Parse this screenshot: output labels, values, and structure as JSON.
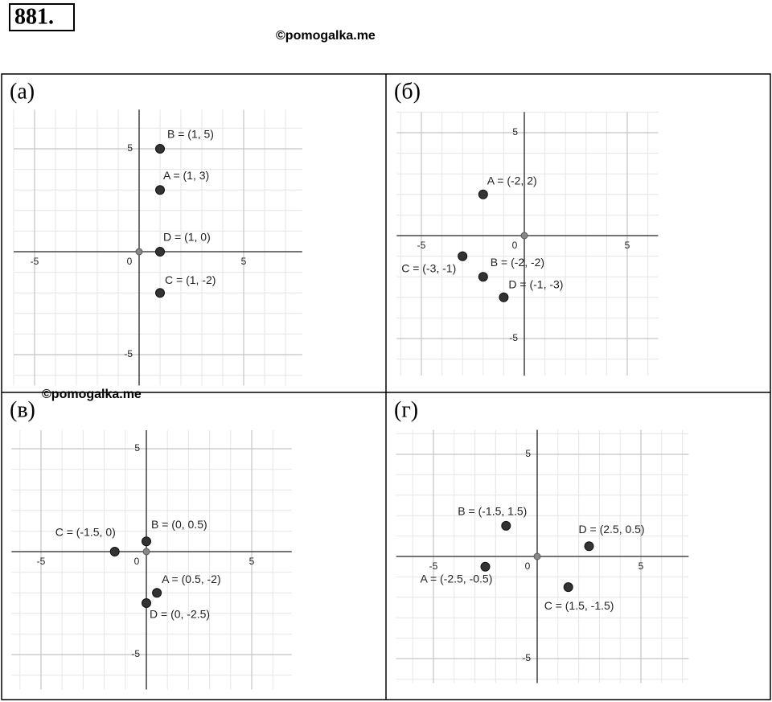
{
  "header": {
    "number": "881.",
    "watermark": "©pomogalka.me"
  },
  "watermark_2": "©pomogalka.me",
  "chart_data": [
    {
      "type": "scatter",
      "title": "(а)",
      "x": [
        1,
        1,
        1,
        1
      ],
      "values": [
        3,
        5,
        -2,
        0
      ],
      "labels": [
        "A = (1, 3)",
        "B = (1, 5)",
        "C = (1, -2)",
        "D = (1, 0)"
      ],
      "xlim": [
        -6,
        7.8
      ],
      "ylim": [
        -6.5,
        6.9
      ],
      "xticks": [
        -5,
        0,
        5
      ],
      "yticks": [
        -5,
        5
      ],
      "grid": true
    },
    {
      "type": "scatter",
      "title": "(б)",
      "x": [
        -2,
        -2,
        -3,
        -1
      ],
      "values": [
        2,
        -2,
        -1,
        -3
      ],
      "labels": [
        "A = (-2, 2)",
        "B = (-2, -2)",
        "C = (-3, -1)",
        "D = (-1, -3)"
      ],
      "xlim": [
        -6.2,
        6.5
      ],
      "ylim": [
        -6.8,
        6
      ],
      "xticks": [
        -5,
        0,
        5
      ],
      "yticks": [
        -5,
        5
      ],
      "grid": true
    },
    {
      "type": "scatter",
      "title": "(в)",
      "x": [
        0.5,
        0,
        -1.5,
        0
      ],
      "values": [
        -2,
        0.5,
        0,
        -2.5
      ],
      "labels": [
        "A = (0.5, -2)",
        "B = (0, 0.5)",
        "C = (-1.5, 0)",
        "D = (0, -2.5)"
      ],
      "xlim": [
        -6.4,
        6.9
      ],
      "ylim": [
        -6.7,
        5.9
      ],
      "xticks": [
        -5,
        0,
        5
      ],
      "yticks": [
        -5,
        5
      ],
      "grid": true
    },
    {
      "type": "scatter",
      "title": "(г)",
      "x": [
        -2.5,
        -1.5,
        1.5,
        2.5
      ],
      "values": [
        -0.5,
        1.5,
        -1.5,
        0.5
      ],
      "labels": [
        "A = (-2.5, -0.5)",
        "B = (-1.5, 1.5)",
        "C = (1.5, -1.5)",
        "D = (2.5, 0.5)"
      ],
      "xlim": [
        -6.8,
        7.3
      ],
      "ylim": [
        -6.2,
        6.2
      ],
      "xticks": [
        -5,
        0,
        5
      ],
      "yticks": [
        -5,
        5
      ],
      "grid": true
    }
  ]
}
